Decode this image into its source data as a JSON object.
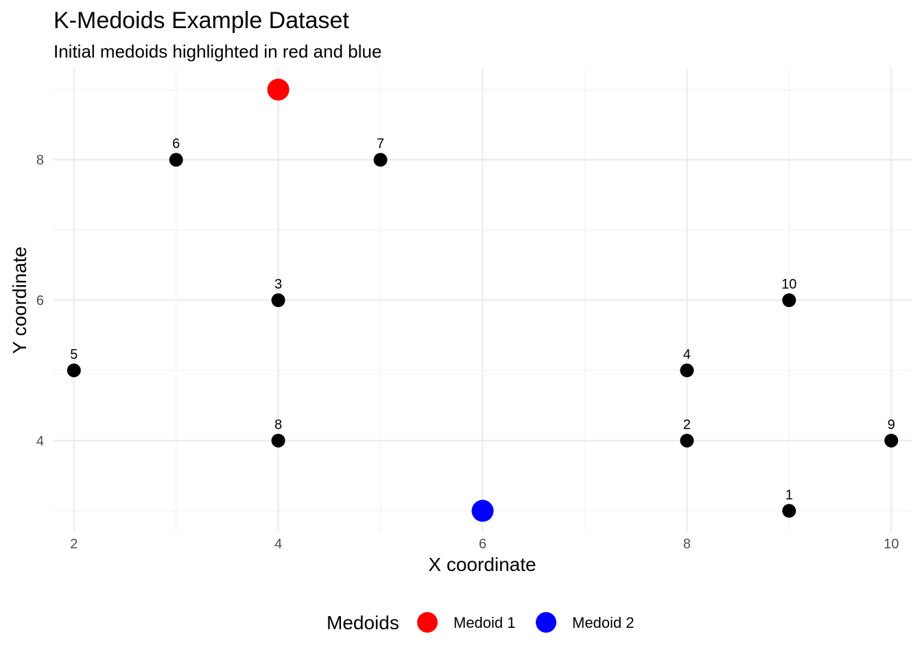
{
  "chart_data": {
    "type": "scatter",
    "title": "K-Medoids Example Dataset",
    "subtitle": "Initial medoids highlighted in red and blue",
    "xlabel": "X coordinate",
    "ylabel": "Y coordinate",
    "xlim": [
      1.8,
      10.2
    ],
    "ylim": [
      2.7,
      9.3
    ],
    "x_ticks": [
      2,
      4,
      6,
      8,
      10
    ],
    "y_ticks": [
      4,
      6,
      8
    ],
    "x_tick_labels": [
      "2",
      "4",
      "6",
      "8",
      "10"
    ],
    "y_tick_labels": [
      "4",
      "6",
      "8"
    ],
    "grid": true,
    "points": [
      {
        "label": "1",
        "x": 9,
        "y": 3
      },
      {
        "label": "2",
        "x": 8,
        "y": 4
      },
      {
        "label": "3",
        "x": 4,
        "y": 6
      },
      {
        "label": "4",
        "x": 8,
        "y": 5
      },
      {
        "label": "5",
        "x": 2,
        "y": 5
      },
      {
        "label": "6",
        "x": 3,
        "y": 8
      },
      {
        "label": "7",
        "x": 5,
        "y": 8
      },
      {
        "label": "8",
        "x": 4,
        "y": 4
      },
      {
        "label": "9",
        "x": 10,
        "y": 4
      },
      {
        "label": "10",
        "x": 9,
        "y": 6
      }
    ],
    "point_color": "#000000",
    "medoids": [
      {
        "name": "Medoid 1",
        "x": 4,
        "y": 9,
        "color": "#ff0000"
      },
      {
        "name": "Medoid 2",
        "x": 6,
        "y": 3,
        "color": "#0000ff"
      }
    ],
    "legend": {
      "title": "Medoids",
      "position": "bottom",
      "items": [
        {
          "label": "Medoid 1",
          "color": "#ff0000"
        },
        {
          "label": "Medoid 2",
          "color": "#0000ff"
        }
      ]
    }
  }
}
